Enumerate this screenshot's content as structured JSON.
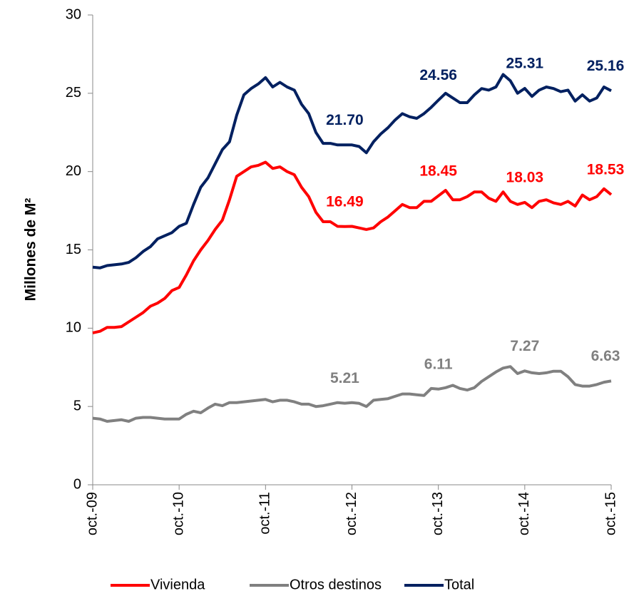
{
  "chart_data": {
    "type": "line",
    "ylabel": "Millones de  M²",
    "categories": [
      "oct.-09",
      null,
      null,
      null,
      null,
      null,
      null,
      null,
      null,
      null,
      null,
      null,
      "oct.-10",
      null,
      null,
      null,
      null,
      null,
      null,
      null,
      null,
      null,
      null,
      null,
      "oct.-11",
      null,
      null,
      null,
      null,
      null,
      null,
      null,
      null,
      null,
      null,
      null,
      "oct.-12",
      null,
      null,
      null,
      null,
      null,
      null,
      null,
      null,
      null,
      null,
      null,
      "oct.-13",
      null,
      null,
      null,
      null,
      null,
      null,
      null,
      null,
      null,
      null,
      null,
      "oct.-14",
      null,
      null,
      null,
      null,
      null,
      null,
      null,
      null,
      null,
      null,
      null,
      "oct.-15"
    ],
    "ylim": [
      0,
      30
    ],
    "yticks": [
      0,
      5,
      10,
      15,
      20,
      25,
      30
    ],
    "legend": "bottom",
    "series": [
      {
        "name": "Vivienda",
        "color": "#ff0000",
        "values": [
          9.7,
          9.8,
          10.05,
          10.05,
          10.1,
          10.4,
          10.7,
          11.0,
          11.4,
          11.6,
          11.9,
          12.4,
          12.6,
          13.4,
          14.3,
          15.0,
          15.6,
          16.3,
          16.9,
          18.2,
          19.7,
          20.0,
          20.3,
          20.4,
          20.6,
          20.2,
          20.3,
          20.0,
          19.8,
          19.0,
          18.4,
          17.4,
          16.8,
          16.8,
          16.5,
          16.49,
          16.5,
          16.4,
          16.3,
          16.4,
          16.8,
          17.1,
          17.5,
          17.9,
          17.7,
          17.7,
          18.1,
          18.1,
          18.45,
          18.8,
          18.2,
          18.2,
          18.4,
          18.7,
          18.7,
          18.3,
          18.1,
          18.7,
          18.1,
          17.9,
          18.03,
          17.7,
          18.1,
          18.2,
          18.0,
          17.9,
          18.1,
          17.8,
          18.5,
          18.2,
          18.4,
          18.9,
          18.53
        ],
        "value_labels": [
          null,
          null,
          null,
          null,
          null,
          null,
          null,
          null,
          null,
          null,
          null,
          null,
          null,
          null,
          null,
          null,
          null,
          null,
          null,
          null,
          null,
          null,
          null,
          null,
          null,
          null,
          null,
          null,
          null,
          null,
          null,
          null,
          null,
          null,
          null,
          "16.49",
          null,
          null,
          null,
          null,
          null,
          null,
          null,
          null,
          null,
          null,
          null,
          null,
          "18.45",
          null,
          null,
          null,
          null,
          null,
          null,
          null,
          null,
          null,
          null,
          null,
          "18.03",
          null,
          null,
          null,
          null,
          null,
          null,
          null,
          null,
          null,
          null,
          null,
          "18.53"
        ]
      },
      {
        "name": "Otros destinos",
        "color": "#808080",
        "values": [
          4.25,
          4.2,
          4.05,
          4.1,
          4.15,
          4.05,
          4.25,
          4.3,
          4.3,
          4.25,
          4.2,
          4.2,
          4.2,
          4.5,
          4.7,
          4.6,
          4.9,
          5.15,
          5.05,
          5.25,
          5.25,
          5.3,
          5.35,
          5.4,
          5.45,
          5.3,
          5.4,
          5.4,
          5.3,
          5.15,
          5.15,
          5.0,
          5.05,
          5.15,
          5.25,
          5.21,
          5.25,
          5.2,
          5.0,
          5.4,
          5.45,
          5.5,
          5.65,
          5.8,
          5.8,
          5.75,
          5.7,
          6.15,
          6.11,
          6.2,
          6.35,
          6.15,
          6.05,
          6.2,
          6.6,
          6.9,
          7.2,
          7.45,
          7.55,
          7.1,
          7.27,
          7.15,
          7.1,
          7.15,
          7.25,
          7.25,
          6.9,
          6.4,
          6.3,
          6.3,
          6.4,
          6.55,
          6.63
        ],
        "value_labels": [
          null,
          null,
          null,
          null,
          null,
          null,
          null,
          null,
          null,
          null,
          null,
          null,
          null,
          null,
          null,
          null,
          null,
          null,
          null,
          null,
          null,
          null,
          null,
          null,
          null,
          null,
          null,
          null,
          null,
          null,
          null,
          null,
          null,
          null,
          null,
          "5.21",
          null,
          null,
          null,
          null,
          null,
          null,
          null,
          null,
          null,
          null,
          null,
          null,
          "6.11",
          null,
          null,
          null,
          null,
          null,
          null,
          null,
          null,
          null,
          null,
          null,
          "7.27",
          null,
          null,
          null,
          null,
          null,
          null,
          null,
          null,
          null,
          null,
          null,
          "6.63"
        ]
      },
      {
        "name": "Total",
        "color": "#002060",
        "values": [
          13.9,
          13.85,
          14.0,
          14.05,
          14.1,
          14.2,
          14.5,
          14.9,
          15.2,
          15.7,
          15.9,
          16.1,
          16.5,
          16.7,
          17.9,
          19.0,
          19.6,
          20.5,
          21.4,
          21.9,
          23.6,
          24.9,
          25.3,
          25.6,
          26.0,
          25.4,
          25.7,
          25.4,
          25.2,
          24.3,
          23.7,
          22.5,
          21.8,
          21.8,
          21.7,
          21.7,
          21.7,
          21.6,
          21.2,
          21.9,
          22.4,
          22.8,
          23.3,
          23.7,
          23.5,
          23.4,
          23.7,
          24.1,
          24.56,
          25.0,
          24.7,
          24.4,
          24.4,
          24.9,
          25.3,
          25.2,
          25.4,
          26.2,
          25.8,
          25.0,
          25.31,
          24.8,
          25.2,
          25.4,
          25.3,
          25.1,
          25.2,
          24.5,
          24.9,
          24.5,
          24.7,
          25.4,
          25.16
        ],
        "value_labels": [
          null,
          null,
          null,
          null,
          null,
          null,
          null,
          null,
          null,
          null,
          null,
          null,
          null,
          null,
          null,
          null,
          null,
          null,
          null,
          null,
          null,
          null,
          null,
          null,
          null,
          null,
          null,
          null,
          null,
          null,
          null,
          null,
          null,
          null,
          null,
          "21.70",
          null,
          null,
          null,
          null,
          null,
          null,
          null,
          null,
          null,
          null,
          null,
          null,
          "24.56",
          null,
          null,
          null,
          null,
          null,
          null,
          null,
          null,
          null,
          null,
          null,
          "25.31",
          null,
          null,
          null,
          null,
          null,
          null,
          null,
          null,
          null,
          null,
          null,
          "25.16"
        ]
      }
    ]
  }
}
